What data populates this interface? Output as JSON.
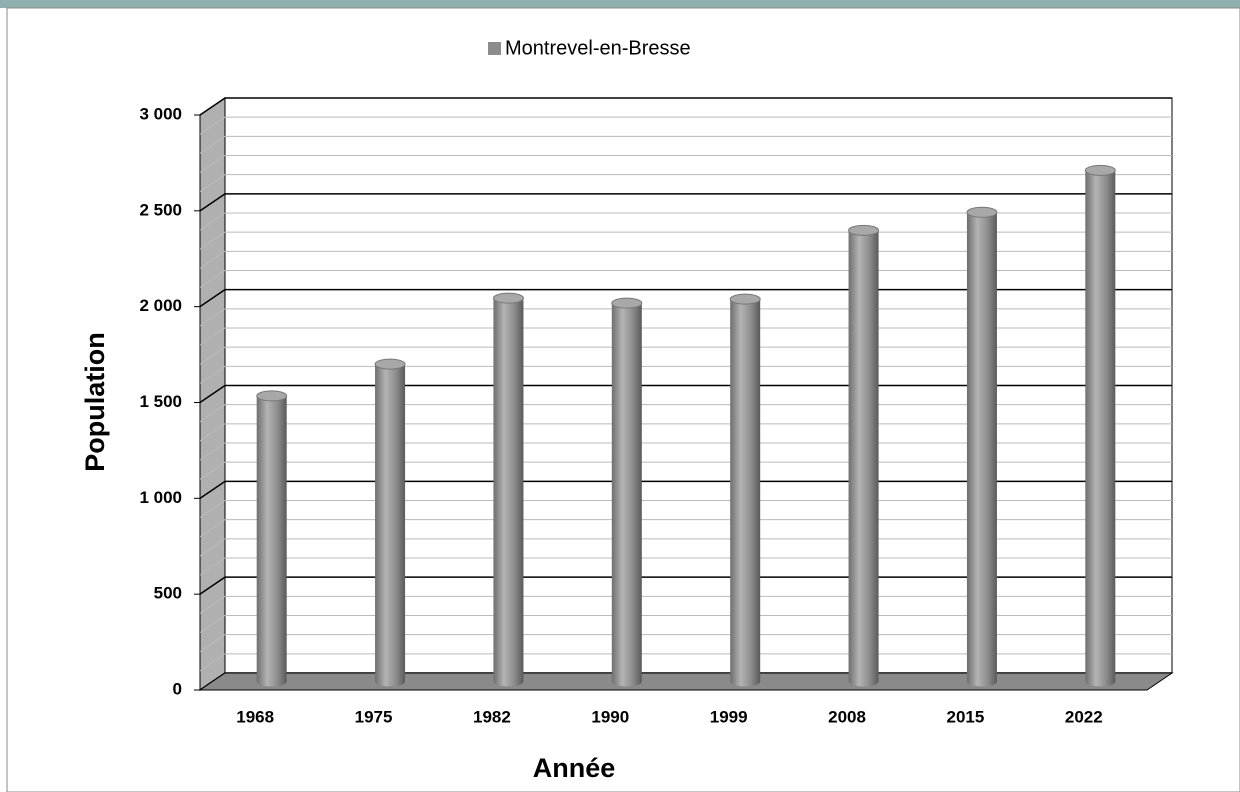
{
  "chart_data": {
    "type": "bar",
    "title": null,
    "legend": "Montrevel-en-Bresse",
    "x_label": "Année",
    "y_label": "Population",
    "categories": [
      "1968",
      "1975",
      "1982",
      "1990",
      "1999",
      "2008",
      "2015",
      "2022"
    ],
    "series": [
      {
        "name": "Montrevel-en-Bresse",
        "color": "#8c8c8c",
        "values": [
          1490,
          1656,
          2000,
          1974,
          1995,
          2354,
          2448,
          2667
        ]
      }
    ],
    "ylim": [
      0,
      3000
    ],
    "yticks": [
      {
        "value": 0,
        "label": "0"
      },
      {
        "value": 500,
        "label": "500"
      },
      {
        "value": 1000,
        "label": "1 000"
      },
      {
        "value": 1500,
        "label": "1 500"
      },
      {
        "value": 2000,
        "label": "2 000"
      },
      {
        "value": 2500,
        "label": "2 500"
      },
      {
        "value": 3000,
        "label": "3 000"
      }
    ],
    "grid": true
  }
}
